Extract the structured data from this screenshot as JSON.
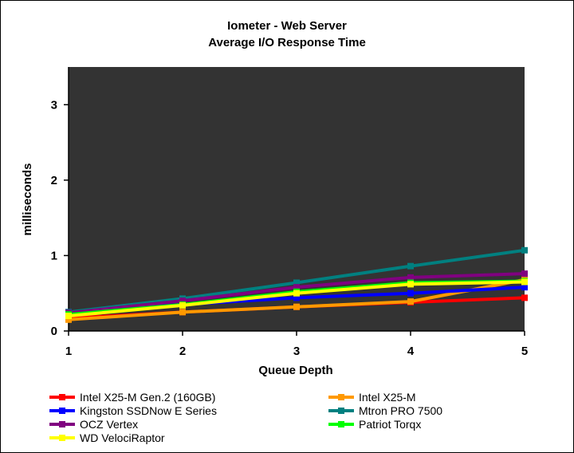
{
  "chart_data": {
    "type": "line",
    "title": "Iometer - Web Server",
    "subtitle": "Average I/O Response Time",
    "xlabel": "Queue Depth",
    "ylabel": "milliseconds",
    "x": [
      1,
      2,
      3,
      4,
      5
    ],
    "xlim": [
      1,
      5
    ],
    "ylim": [
      0,
      3.5
    ],
    "yticks": [
      0,
      1,
      2,
      3
    ],
    "plot_background": "#333333",
    "grid": false,
    "legend_position": "bottom",
    "series": [
      {
        "name": "Intel X25-M Gen.2 (160GB)",
        "color": "#ff0000",
        "values": [
          0.17,
          0.25,
          0.32,
          0.38,
          0.44
        ]
      },
      {
        "name": "Intel X25-M",
        "color": "#ff9900",
        "values": [
          0.15,
          0.25,
          0.32,
          0.39,
          0.68
        ]
      },
      {
        "name": "Kingston SSDNow E Series",
        "color": "#0000ff",
        "values": [
          0.25,
          0.35,
          0.44,
          0.5,
          0.58
        ]
      },
      {
        "name": "Mtron PRO 7500",
        "color": "#008080",
        "values": [
          0.25,
          0.43,
          0.64,
          0.86,
          1.07
        ]
      },
      {
        "name": "OCZ Vertex",
        "color": "#800080",
        "values": [
          0.24,
          0.4,
          0.58,
          0.71,
          0.76
        ]
      },
      {
        "name": "Patriot Torqx",
        "color": "#00ff00",
        "values": [
          0.22,
          0.35,
          0.52,
          0.64,
          0.66
        ]
      },
      {
        "name": "WD VelociRaptor",
        "color": "#ffff00",
        "values": [
          0.2,
          0.34,
          0.5,
          0.62,
          0.65
        ]
      }
    ]
  }
}
